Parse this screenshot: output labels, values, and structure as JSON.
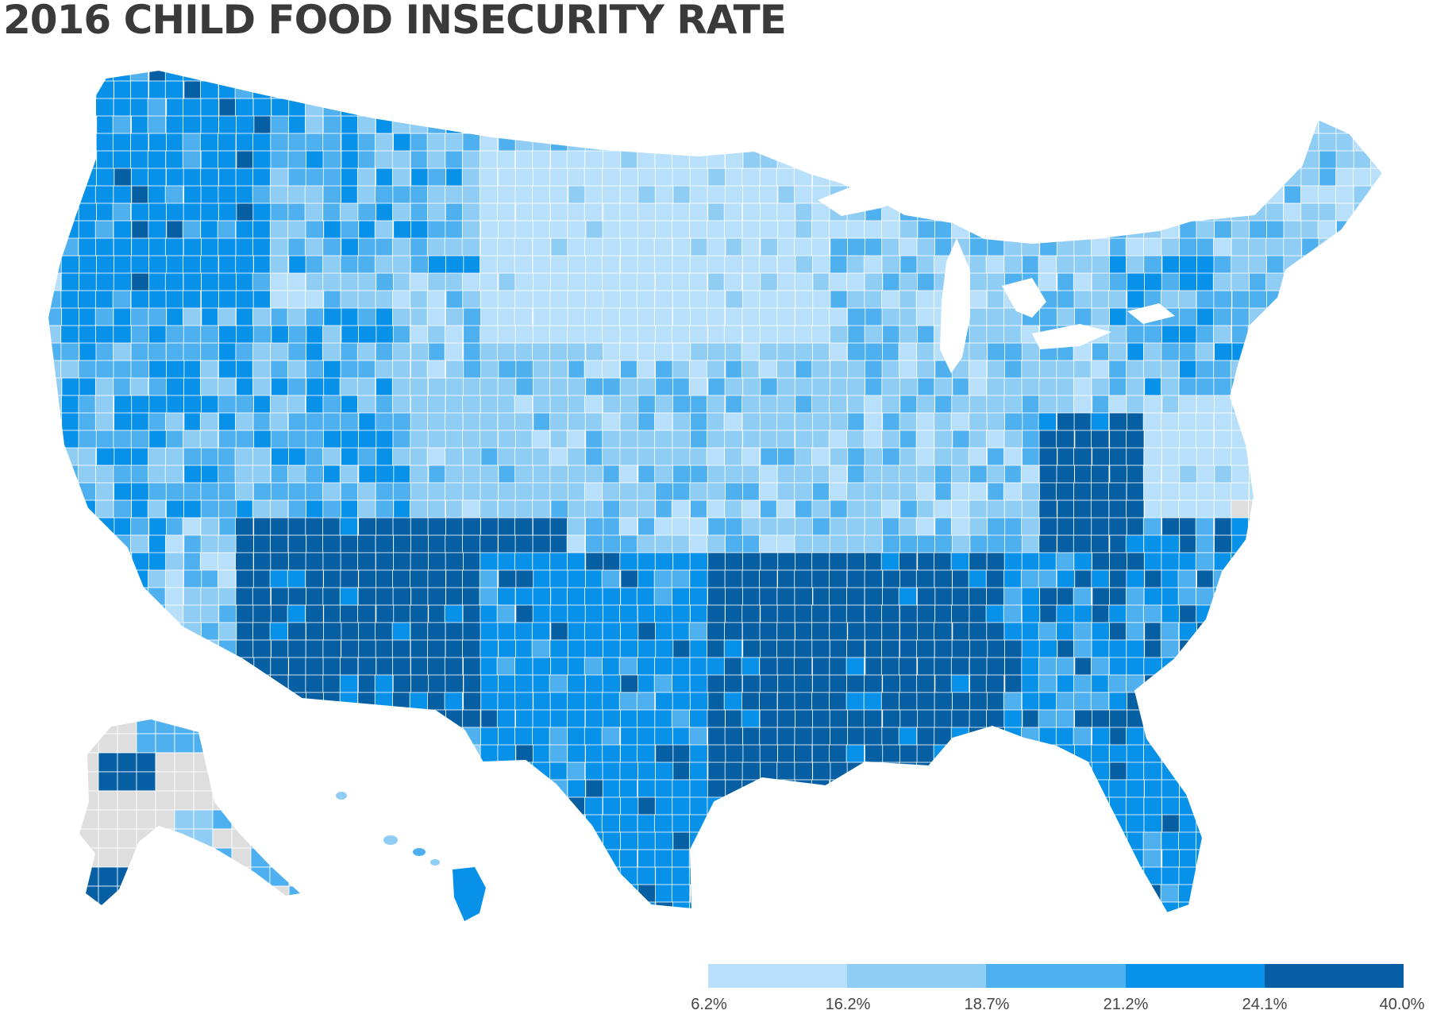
{
  "title": "2016 CHILD FOOD INSECURITY RATE",
  "legend": {
    "colors": [
      "#b8e0fa",
      "#8fcdf5",
      "#4fb0f0",
      "#0891e8",
      "#065fa3"
    ],
    "labels": [
      "6.2%",
      "16.2%",
      "18.7%",
      "21.2%",
      "24.1%",
      "40.0%"
    ]
  },
  "map": {
    "no_data_color": "#dedede",
    "border_color": "#ffffff"
  }
}
